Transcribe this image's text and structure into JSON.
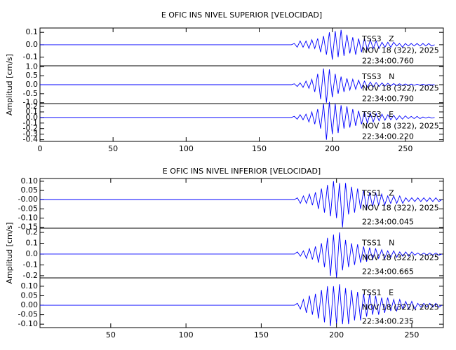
{
  "chart_data": [
    {
      "type": "line",
      "title": "E OFIC INS NIVEL SUPERIOR [VELOCIDAD]",
      "ylabel": "Amplitud [cm/s]",
      "xlim": [
        0,
        276
      ],
      "xticks": [
        0,
        50,
        100,
        150,
        200,
        250
      ],
      "x": [
        0,
        40,
        80,
        120,
        160,
        172,
        174,
        176,
        178,
        180,
        182,
        184,
        186,
        188,
        190,
        192,
        194,
        196,
        198,
        200,
        202,
        204,
        206,
        208,
        210,
        212,
        214,
        216,
        218,
        220,
        222,
        224,
        226,
        228,
        230,
        232,
        234,
        236,
        238,
        240,
        242,
        244,
        246,
        248,
        250,
        252,
        254,
        256,
        258,
        260,
        262,
        264,
        266,
        268,
        270
      ],
      "panels": [
        {
          "station": "TSS3   Z",
          "date": "NOV 18 (322), 2025",
          "time": "22:34:00.760",
          "color": "#0000ff",
          "ylim": [
            -0.17,
            0.135
          ],
          "yticks": [
            0.1,
            {
              "value": 0,
              "label": "0.0"
            },
            -0.1
          ],
          "values": [
            0,
            0,
            0,
            0,
            0,
            0,
            0.01,
            -0.02,
            0.03,
            -0.02,
            0.03,
            -0.03,
            0.04,
            -0.03,
            0.05,
            -0.06,
            0.07,
            -0.08,
            0.1,
            -0.12,
            0.11,
            -0.1,
            0.12,
            -0.09,
            0.08,
            -0.07,
            0.06,
            -0.08,
            0.05,
            -0.06,
            0.05,
            -0.04,
            0.04,
            -0.03,
            0.03,
            -0.03,
            0.02,
            -0.02,
            0.02,
            -0.02,
            0.02,
            -0.01,
            0.01,
            -0.02,
            0.01,
            -0.01,
            0.01,
            -0.01,
            0.01,
            -0.01,
            0.01,
            -0.01,
            0.01,
            -0.01,
            0
          ]
        },
        {
          "station": "TSS3   N",
          "date": "NOV 18 (322), 2025",
          "time": "22:34:00.790",
          "color": "#0000ff",
          "ylim": [
            -1.05,
            1.05
          ],
          "yticks": [
            {
              "value": 1,
              "label": "1.0"
            },
            0.5,
            {
              "value": 0,
              "label": "0.0"
            },
            -0.5,
            {
              "value": -1,
              "label": "-1.0"
            }
          ],
          "values": [
            0,
            0,
            0,
            0,
            0,
            0,
            0.05,
            -0.1,
            0.1,
            -0.15,
            0.2,
            -0.2,
            0.3,
            -0.4,
            0.6,
            -0.8,
            0.9,
            -1.0,
            0.85,
            -0.7,
            0.6,
            -0.5,
            0.45,
            -0.4,
            0.35,
            -0.3,
            0.3,
            -0.25,
            0.25,
            -0.2,
            0.2,
            -0.15,
            0.15,
            -0.12,
            0.12,
            -0.1,
            0.1,
            -0.08,
            0.08,
            -0.06,
            0.06,
            -0.05,
            0.05,
            -0.04,
            0.04,
            -0.03,
            0.03,
            -0.03,
            0.02,
            -0.02,
            0.02,
            -0.02,
            0.01,
            -0.01,
            0
          ]
        },
        {
          "station": "TSS3   E",
          "date": "NOV 18 (322), 2025",
          "time": "22:34:00.220",
          "color": "#0000ff",
          "ylim": [
            -0.43,
            0.25
          ],
          "yticks": [
            0.2,
            0.1,
            {
              "value": 0,
              "label": "0.0"
            },
            -0.1,
            -0.2,
            -0.3,
            -0.4
          ],
          "values": [
            0,
            0,
            0,
            0,
            0,
            0,
            0.02,
            -0.03,
            0.05,
            -0.04,
            0.06,
            -0.08,
            0.1,
            -0.12,
            0.15,
            -0.2,
            0.25,
            -0.4,
            0.28,
            -0.3,
            0.25,
            -0.28,
            0.22,
            -0.2,
            0.2,
            -0.18,
            0.15,
            -0.15,
            0.12,
            -0.12,
            0.1,
            -0.1,
            0.08,
            -0.08,
            0.07,
            -0.06,
            0.06,
            -0.05,
            0.05,
            -0.04,
            0.04,
            -0.04,
            0.03,
            -0.03,
            0.03,
            -0.02,
            0.02,
            -0.02,
            0.02,
            -0.02,
            0.01,
            -0.01,
            0.01,
            -0.01,
            0
          ]
        }
      ]
    },
    {
      "type": "line",
      "title": "E OFIC INS NIVEL INFERIOR [VELOCIDAD]",
      "ylabel": "Amplitud [cm/s]",
      "xlim": [
        3,
        271
      ],
      "xticks": [
        50,
        100,
        150,
        200,
        250
      ],
      "x": [
        3,
        40,
        80,
        120,
        160,
        172,
        174,
        176,
        178,
        180,
        182,
        184,
        186,
        188,
        190,
        192,
        194,
        196,
        198,
        200,
        202,
        204,
        206,
        208,
        210,
        212,
        214,
        216,
        218,
        220,
        222,
        224,
        226,
        228,
        230,
        232,
        234,
        236,
        238,
        240,
        242,
        244,
        246,
        248,
        250,
        252,
        254,
        256,
        258,
        260,
        262,
        264,
        266,
        268,
        270
      ],
      "panels": [
        {
          "station": "TSS1   Z",
          "date": "NOV 18 (322), 2025",
          "time": "22:34:00.045",
          "color": "#0000ff",
          "ylim": [
            -0.155,
            0.115
          ],
          "yticks": [
            {
              "value": 0.1,
              "label": "0.10"
            },
            {
              "value": 0.05,
              "label": "0.05"
            },
            {
              "value": 0,
              "label": "-0.00"
            },
            {
              "value": -0.05,
              "label": "-0.05"
            },
            {
              "value": -0.1,
              "label": "-0.10"
            },
            {
              "value": -0.15,
              "label": "-0.15"
            }
          ],
          "values": [
            0,
            0,
            0,
            0,
            0,
            0,
            0.01,
            -0.02,
            0.02,
            -0.02,
            0.03,
            -0.03,
            0.04,
            -0.05,
            0.06,
            -0.07,
            0.08,
            -0.09,
            0.1,
            -0.1,
            0.09,
            -0.15,
            0.09,
            -0.08,
            0.07,
            -0.07,
            0.06,
            -0.05,
            0.05,
            -0.05,
            0.04,
            -0.04,
            0.04,
            -0.03,
            0.03,
            -0.03,
            0.02,
            -0.02,
            0.02,
            -0.02,
            0.02,
            -0.02,
            0.01,
            -0.01,
            0.01,
            -0.01,
            0.01,
            -0.01,
            0.01,
            -0.01,
            0.01,
            -0.01,
            0.01,
            -0.01,
            0
          ]
        },
        {
          "station": "TSS1   N",
          "date": "NOV 18 (322), 2025",
          "time": "22:34:00.665",
          "color": "#0000ff",
          "ylim": [
            -0.22,
            0.239
          ],
          "yticks": [
            0.2,
            0.1,
            {
              "value": 0,
              "label": "0.0"
            },
            -0.1,
            -0.2
          ],
          "values": [
            0,
            0,
            0,
            0,
            0,
            0,
            0.02,
            -0.02,
            0.03,
            -0.04,
            0.05,
            -0.05,
            0.07,
            -0.08,
            0.1,
            -0.12,
            0.15,
            -0.2,
            0.18,
            -0.22,
            0.2,
            -0.15,
            0.13,
            -0.12,
            0.1,
            -0.1,
            0.09,
            -0.08,
            0.07,
            -0.07,
            0.06,
            -0.05,
            0.05,
            -0.04,
            0.04,
            -0.04,
            0.03,
            -0.03,
            0.03,
            -0.03,
            0.02,
            -0.02,
            0.02,
            -0.02,
            0.02,
            -0.01,
            0.01,
            -0.01,
            0.01,
            -0.01,
            0.01,
            -0.01,
            0.01,
            -0.01,
            0
          ]
        },
        {
          "station": "TSS1   E",
          "date": "NOV 18 (322), 2025",
          "time": "22:34:00.235",
          "color": "#0000ff",
          "ylim": [
            -0.118,
            0.144
          ],
          "yticks": [
            {
              "value": 0.1,
              "label": "0.10"
            },
            {
              "value": 0.05,
              "label": "0.05"
            },
            {
              "value": 0,
              "label": "0.00"
            },
            {
              "value": -0.05,
              "label": "-0.05"
            },
            {
              "value": -0.1,
              "label": "-0.10"
            }
          ],
          "values": [
            0,
            0,
            0,
            0,
            0,
            0,
            0.01,
            -0.02,
            0.03,
            -0.04,
            0.05,
            -0.05,
            0.06,
            -0.07,
            0.08,
            -0.09,
            0.1,
            -0.11,
            0.1,
            -0.1,
            0.11,
            -0.1,
            0.09,
            -0.1,
            0.08,
            -0.08,
            0.07,
            -0.08,
            0.06,
            -0.06,
            0.06,
            -0.05,
            0.05,
            -0.05,
            0.04,
            -0.04,
            0.04,
            -0.03,
            0.03,
            -0.03,
            0.03,
            -0.02,
            0.02,
            -0.02,
            0.02,
            -0.02,
            0.01,
            -0.01,
            0.01,
            -0.01,
            0.01,
            -0.01,
            0.01,
            -0.01,
            0
          ]
        }
      ]
    }
  ]
}
